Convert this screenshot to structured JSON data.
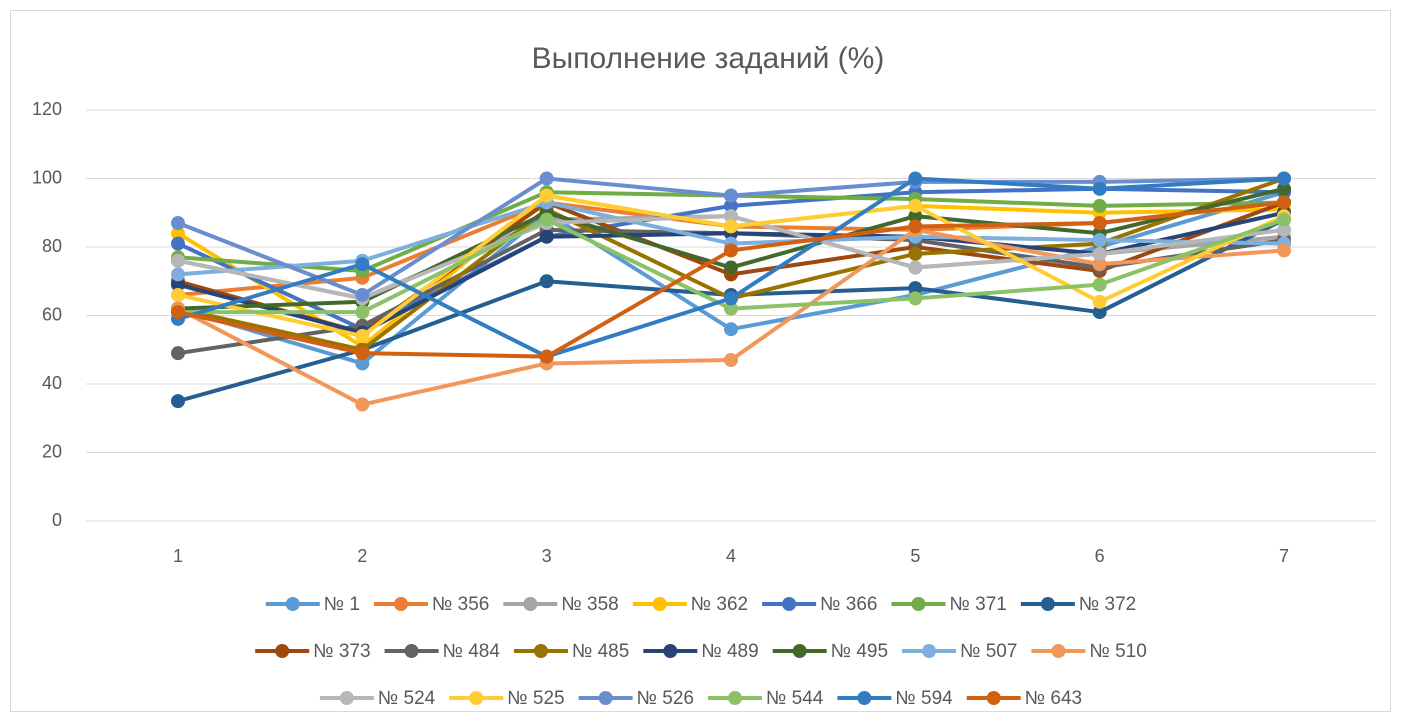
{
  "chart_data": {
    "type": "line",
    "title": "Выполнение заданий (%)",
    "x": [
      1,
      2,
      3,
      4,
      5,
      6,
      7
    ],
    "xlim": [
      1,
      7
    ],
    "ylim": [
      0,
      120
    ],
    "yticks": [
      0,
      20,
      40,
      60,
      80,
      100,
      120
    ],
    "grid": true,
    "legend": "bottom",
    "series": [
      {
        "name": "№ 1",
        "color": "#5B9BD5",
        "values": [
          62,
          46,
          90,
          56,
          66,
          80,
          96
        ]
      },
      {
        "name": "№ 356",
        "color": "#ED7D31",
        "values": [
          66,
          71,
          93,
          86,
          85,
          87,
          93
        ]
      },
      {
        "name": "№ 358",
        "color": "#A5A5A5",
        "values": [
          76,
          65,
          88,
          89,
          74,
          78,
          83
        ]
      },
      {
        "name": "№ 362",
        "color": "#FFC000",
        "values": [
          84,
          51,
          95,
          86,
          92,
          90,
          91
        ]
      },
      {
        "name": "№ 366",
        "color": "#4472C4",
        "values": [
          81,
          56,
          83,
          92,
          96,
          97,
          96
        ]
      },
      {
        "name": "№ 371",
        "color": "#70AD47",
        "values": [
          77,
          73,
          96,
          95,
          94,
          92,
          93
        ]
      },
      {
        "name": "№ 372",
        "color": "#255E91",
        "values": [
          35,
          50,
          70,
          66,
          68,
          61,
          88
        ]
      },
      {
        "name": "№ 373",
        "color": "#9E480E",
        "values": [
          70,
          55,
          93,
          72,
          80,
          73,
          93
        ]
      },
      {
        "name": "№ 484",
        "color": "#636363",
        "values": [
          49,
          57,
          85,
          84,
          82,
          74,
          82
        ]
      },
      {
        "name": "№ 485",
        "color": "#997300",
        "values": [
          62,
          50,
          91,
          65,
          78,
          81,
          100
        ]
      },
      {
        "name": "№ 489",
        "color": "#264478",
        "values": [
          69,
          55,
          83,
          84,
          83,
          78,
          90
        ]
      },
      {
        "name": "№ 495",
        "color": "#43682B",
        "values": [
          62,
          64,
          90,
          74,
          89,
          84,
          97
        ]
      },
      {
        "name": "№ 507",
        "color": "#7CAFDD",
        "values": [
          72,
          76,
          93,
          81,
          83,
          82,
          81
        ]
      },
      {
        "name": "№ 510",
        "color": "#F1975A",
        "values": [
          62,
          34,
          46,
          47,
          85,
          75,
          79
        ]
      },
      {
        "name": "№ 524",
        "color": "#B7B7B7",
        "values": [
          76,
          65,
          87,
          89,
          74,
          78,
          85
        ]
      },
      {
        "name": "№ 525",
        "color": "#FFCD33",
        "values": [
          66,
          54,
          95,
          86,
          92,
          64,
          89
        ]
      },
      {
        "name": "№ 526",
        "color": "#698ED0",
        "values": [
          87,
          66,
          100,
          95,
          99,
          99,
          100
        ]
      },
      {
        "name": "№ 544",
        "color": "#8CC168",
        "values": [
          61,
          61,
          88,
          62,
          65,
          69,
          88
        ]
      },
      {
        "name": "№ 594",
        "color": "#327DC2",
        "values": [
          59,
          75,
          48,
          65,
          100,
          97,
          100
        ]
      },
      {
        "name": "№ 643",
        "color": "#D26012",
        "values": [
          61,
          49,
          48,
          79,
          86,
          87,
          93
        ]
      }
    ]
  }
}
